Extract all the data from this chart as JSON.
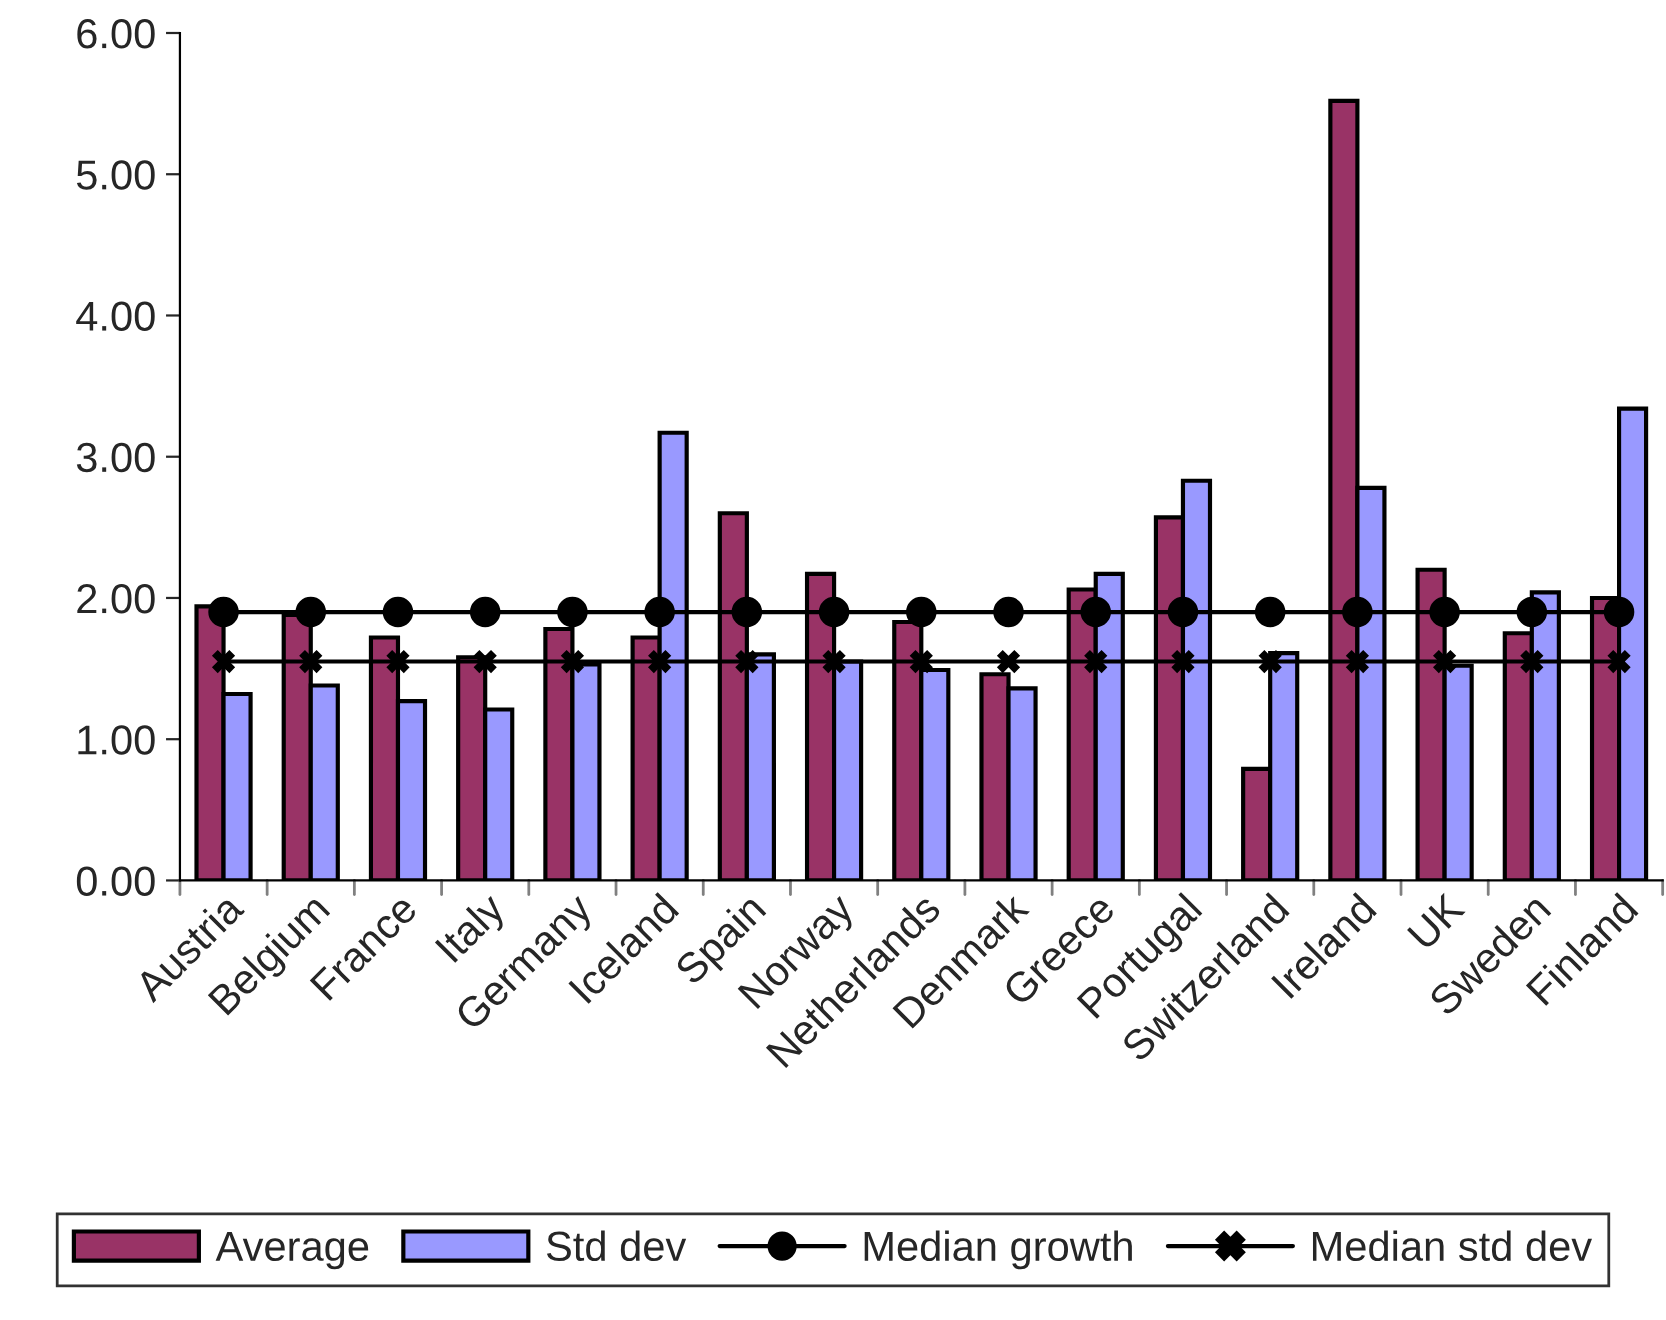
{
  "chart_data": {
    "type": "bar",
    "categories": [
      "Austria",
      "Belgium",
      "France",
      "Italy",
      "Germany",
      "Iceland",
      "Spain",
      "Norway",
      "Netherlands",
      "Denmark",
      "Greece",
      "Portugal",
      "Switzerland",
      "Ireland",
      "UK",
      "Sweden",
      "Finland"
    ],
    "series": [
      {
        "name": "Average",
        "color": "#993366",
        "values": [
          1.94,
          1.88,
          1.72,
          1.58,
          1.78,
          1.72,
          2.6,
          2.17,
          1.83,
          1.46,
          2.06,
          2.57,
          0.79,
          5.52,
          2.2,
          1.75,
          2.0
        ]
      },
      {
        "name": "Std dev",
        "color": "#9999ff",
        "values": [
          1.32,
          1.38,
          1.27,
          1.21,
          1.53,
          3.17,
          1.6,
          1.55,
          1.49,
          1.36,
          2.17,
          2.83,
          1.61,
          2.78,
          1.52,
          2.04,
          3.34
        ]
      },
      {
        "name": "Median growth",
        "type": "line",
        "color": "#000000",
        "marker": "circle",
        "values": [
          1.9,
          1.9,
          1.9,
          1.9,
          1.9,
          1.9,
          1.9,
          1.9,
          1.9,
          1.9,
          1.9,
          1.9,
          1.9,
          1.9,
          1.9,
          1.9,
          1.9
        ]
      },
      {
        "name": "Median std dev",
        "type": "line",
        "color": "#000000",
        "marker": "cross",
        "values": [
          1.55,
          1.55,
          1.55,
          1.55,
          1.55,
          1.55,
          1.55,
          1.55,
          1.55,
          1.55,
          1.55,
          1.55,
          1.55,
          1.55,
          1.55,
          1.55,
          1.55
        ]
      }
    ],
    "ylim": [
      0,
      6
    ],
    "yticks": [
      {
        "value": 0,
        "label": "0.00"
      },
      {
        "value": 1,
        "label": "1.00"
      },
      {
        "value": 2,
        "label": "2.00"
      },
      {
        "value": 3,
        "label": "3.00"
      },
      {
        "value": 4,
        "label": "4.00"
      },
      {
        "value": 5,
        "label": "5.00"
      },
      {
        "value": 6,
        "label": "6.00"
      }
    ],
    "grid": false,
    "legend": "bottom"
  }
}
